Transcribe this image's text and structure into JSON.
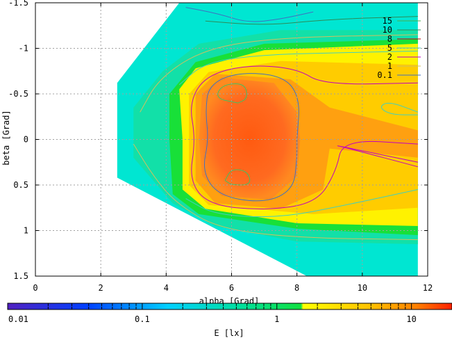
{
  "chart_data": {
    "type": "heatmap",
    "xlabel": "alpha [Grad]",
    "ylabel": "beta [Grad]",
    "xlim": [
      0,
      12
    ],
    "ylim": [
      1.5,
      -1.5
    ],
    "y_inverted": true,
    "x_ticks": [
      0,
      2,
      4,
      6,
      8,
      10,
      12
    ],
    "x_tick_labels": [
      "0",
      "2",
      "4",
      "6",
      "8",
      "10",
      "12"
    ],
    "y_ticks": [
      -1.5,
      -1,
      -0.5,
      0,
      0.5,
      1,
      1.5
    ],
    "y_tick_labels": [
      "-1.5",
      "-1",
      "-0.5",
      "0",
      "0.5",
      "1",
      "1.5"
    ],
    "grid": true,
    "legend_position": "top-right",
    "contour_levels": [
      {
        "label": "15",
        "value": 15,
        "color": "#4caf50"
      },
      {
        "label": "10",
        "value": 10,
        "color": "#2e8b57"
      },
      {
        "label": "8",
        "value": 8,
        "color": "#c00000"
      },
      {
        "label": "5",
        "value": 5,
        "color": "#40d0c0"
      },
      {
        "label": "2",
        "value": 2,
        "color": "#c000c0"
      },
      {
        "label": "1",
        "value": 1,
        "color": "#d0c060"
      },
      {
        "label": "0.1",
        "value": 0.1,
        "color": "#4070c0"
      }
    ],
    "colorbar": {
      "label": "E [lx]",
      "scale": "log",
      "range": [
        0.01,
        20
      ],
      "ticks": [
        0.01,
        0.1,
        1,
        10
      ],
      "tick_labels": [
        "0.01",
        "0.1",
        "1",
        "10"
      ],
      "colors": [
        "#5020c0",
        "#0040ff",
        "#00d0ff",
        "#00e0a0",
        "#10e040",
        "#ffff00",
        "#ffa000",
        "#ff2000"
      ]
    },
    "field_region": {
      "alpha_range": [
        2.5,
        11.7
      ],
      "beta_left_edge": [
        -0.62,
        0.42
      ],
      "peak_points": [
        {
          "alpha": 6.0,
          "beta": -0.5
        },
        {
          "alpha": 6.2,
          "beta": 0.4
        }
      ]
    }
  }
}
